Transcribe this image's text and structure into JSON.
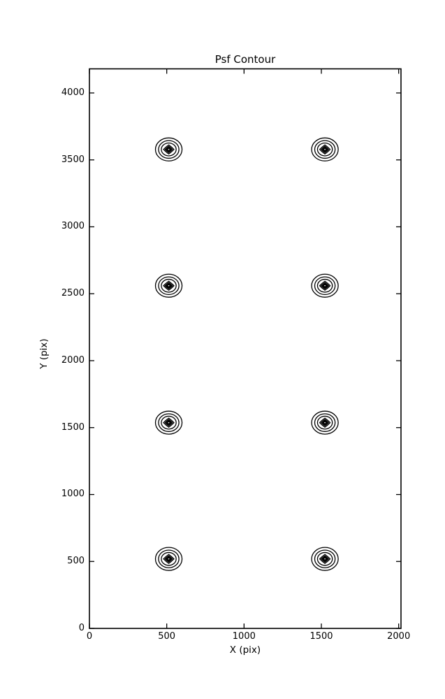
{
  "figure": {
    "background_color": "#ffffff",
    "line_color": "#000000"
  },
  "chart_data": {
    "type": "contour",
    "title": "Psf Contour",
    "xlabel": "X (pix)",
    "ylabel": "Y (pix)",
    "xlim": [
      0,
      2015
    ],
    "ylim": [
      0,
      4180
    ],
    "x_ticks": [
      0,
      500,
      1000,
      1500,
      2000
    ],
    "y_ticks": [
      0,
      500,
      1000,
      1500,
      2000,
      2500,
      3000,
      3500,
      4000
    ],
    "grid": false,
    "legend": "none",
    "tick_direction": "in",
    "psf_centers": [
      {
        "x": 513,
        "y": 3578
      },
      {
        "x": 1523,
        "y": 3578
      },
      {
        "x": 513,
        "y": 2560
      },
      {
        "x": 1523,
        "y": 2560
      },
      {
        "x": 513,
        "y": 1537
      },
      {
        "x": 1523,
        "y": 1537
      },
      {
        "x": 513,
        "y": 519
      },
      {
        "x": 1523,
        "y": 519
      }
    ],
    "contour_ring_radii_pix": [
      86,
      66,
      48,
      34,
      24,
      16,
      9
    ]
  }
}
